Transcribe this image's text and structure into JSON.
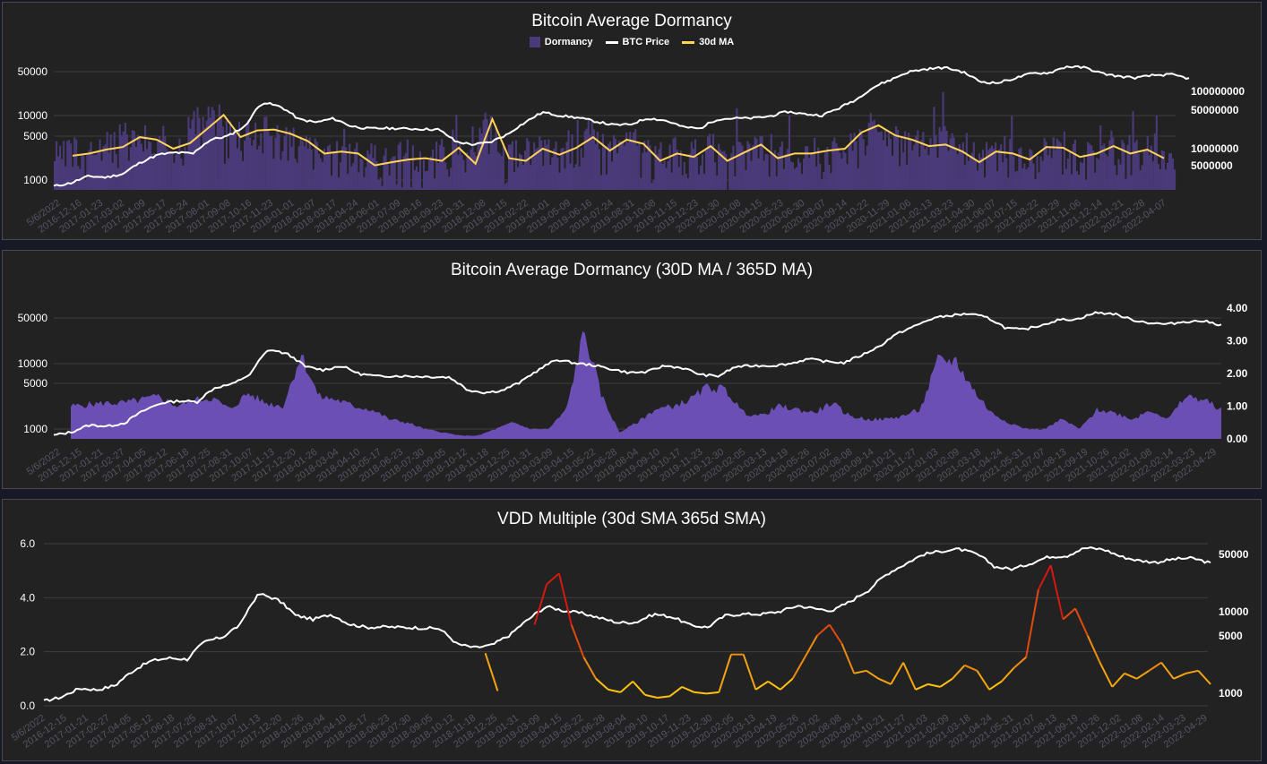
{
  "chart_data": [
    {
      "type": "bar",
      "title": "Bitcoin Average Dormancy",
      "legend": [
        {
          "name": "Dormancy",
          "color": "#4b3a7a",
          "kind": "box"
        },
        {
          "name": "BTC Price",
          "color": "#ffffff",
          "kind": "line"
        },
        {
          "name": "30d MA",
          "color": "#ffd25a",
          "kind": "line"
        }
      ],
      "left_axis_ticks": [
        "50000",
        "10000",
        "5000",
        "1000"
      ],
      "left_axis_values": [
        50000,
        10000,
        5000,
        1000
      ],
      "right_axis_ticks": [
        "100000000",
        "50000000",
        "10000000",
        "5000000"
      ],
      "right_axis_values": [
        100000000,
        50000000,
        10000000,
        5000000
      ],
      "x_ticks": [
        "5/6/2022",
        "2016-12-16",
        "2017-01-23",
        "2017-03-02",
        "2017-04-09",
        "2017-05-17",
        "2017-06-24",
        "2017-08-01",
        "2017-09-08",
        "2017-10-16",
        "2017-11-23",
        "2018-01-01",
        "2018-02-07",
        "2018-03-17",
        "2018-04-24",
        "2018-06-01",
        "2018-07-09",
        "2018-08-16",
        "2018-09-23",
        "2018-10-31",
        "2018-12-08",
        "2019-01-15",
        "2019-02-22",
        "2019-04-01",
        "2019-05-09",
        "2019-06-16",
        "2019-07-24",
        "2019-08-31",
        "2019-10-08",
        "2019-11-15",
        "2019-12-23",
        "2020-01-30",
        "2020-03-08",
        "2020-04-15",
        "2020-05-23",
        "2020-06-30",
        "2020-08-07",
        "2020-09-14",
        "2020-10-22",
        "2020-11-29",
        "2021-01-06",
        "2021-02-13",
        "2021-03-23",
        "2021-04-30",
        "2021-06-07",
        "2021-07-15",
        "2021-08-22",
        "2021-09-29",
        "2021-11-06",
        "2021-12-14",
        "2022-01-21",
        "2022-02-28",
        "2022-04-07"
      ],
      "price": [
        800,
        900,
        1150,
        1100,
        1250,
        1900,
        2500,
        2700,
        2600,
        4300,
        4900,
        7000,
        16500,
        14000,
        9000,
        8000,
        9200,
        7000,
        6400,
        6500,
        6400,
        6300,
        6200,
        4000,
        3600,
        3900,
        5200,
        8000,
        11500,
        10200,
        9500,
        8300,
        7300,
        7400,
        9300,
        8600,
        6800,
        6400,
        9000,
        9300,
        9300,
        10000,
        11800,
        10800,
        10300,
        13500,
        18500,
        29000,
        38000,
        50000,
        55000,
        58000,
        50000,
        35000,
        33000,
        39000,
        47000,
        48000,
        60000,
        58000,
        47000,
        42000,
        40000,
        44000,
        45000,
        39000
      ],
      "ma30": [
        2400,
        2600,
        3000,
        3300,
        4700,
        4300,
        3100,
        3800,
        6300,
        10500,
        4700,
        6000,
        6200,
        5300,
        4100,
        2600,
        2800,
        2600,
        1700,
        1900,
        2100,
        2200,
        2000,
        3200,
        1800,
        9000,
        2200,
        2000,
        3100,
        2500,
        3200,
        4700,
        2900,
        4300,
        3700,
        2000,
        2600,
        2300,
        3400,
        2000,
        2700,
        3600,
        2200,
        2600,
        2600,
        2900,
        3100,
        5600,
        7200,
        5000,
        4300,
        3400,
        3600,
        2800,
        1900,
        2800,
        2600,
        2100,
        3300,
        3200,
        2300,
        2600,
        3400,
        2600,
        3000,
        2200
      ]
    },
    {
      "type": "area",
      "title": "Bitcoin Average Dormancy (30D MA / 365D MA)",
      "series_color": "#6b4fb5",
      "left_axis_ticks": [
        "50000",
        "10000",
        "5000",
        "1000"
      ],
      "left_axis_values": [
        50000,
        10000,
        5000,
        1000
      ],
      "right_axis_ticks": [
        "4.00",
        "3.00",
        "2.00",
        "1.00",
        "0.00"
      ],
      "right_axis_values": [
        4,
        3,
        2,
        1,
        0
      ],
      "x_ticks": [
        "5/6/2022",
        "2016-12-15",
        "2017-01-21",
        "2017-02-27",
        "2017-04-05",
        "2017-05-12",
        "2017-06-18",
        "2017-07-25",
        "2017-08-31",
        "2017-10-07",
        "2017-11-13",
        "2017-12-20",
        "2018-01-26",
        "2018-03-04",
        "2018-04-10",
        "2018-05-17",
        "2018-06-23",
        "2018-07-30",
        "2018-09-05",
        "2018-10-12",
        "2018-11-18",
        "2018-12-25",
        "2019-01-31",
        "2019-03-09",
        "2019-04-15",
        "2019-05-22",
        "2019-06-28",
        "2019-08-04",
        "2019-09-10",
        "2019-10-17",
        "2019-11-23",
        "2019-12-30",
        "2020-02-05",
        "2020-03-13",
        "2020-04-19",
        "2020-05-26",
        "2020-07-02",
        "2020-08-08",
        "2020-09-14",
        "2020-10-21",
        "2020-11-27",
        "2021-01-03",
        "2021-02-09",
        "2021-03-18",
        "2021-04-24",
        "2021-05-31",
        "2021-07-07",
        "2021-08-13",
        "2021-09-19",
        "2021-10-26",
        "2021-12-02",
        "2022-01-08",
        "2022-02-14",
        "2022-03-23",
        "2022-04-29"
      ],
      "price": [
        800,
        900,
        1150,
        1100,
        1250,
        1900,
        2500,
        2700,
        2600,
        4300,
        4900,
        7000,
        16500,
        14000,
        9000,
        8000,
        9200,
        7000,
        6400,
        6500,
        6400,
        6300,
        6200,
        4000,
        3600,
        3900,
        5200,
        8000,
        11500,
        10200,
        9500,
        8300,
        7300,
        7400,
        9300,
        8600,
        6800,
        6400,
        9000,
        9300,
        9300,
        10000,
        11800,
        10800,
        10300,
        13500,
        18500,
        29000,
        38000,
        50000,
        55000,
        58000,
        50000,
        35000,
        33000,
        39000,
        47000,
        48000,
        60000,
        58000,
        47000,
        42000,
        40000,
        44000,
        45000,
        39000
      ],
      "ratio": [
        1.0,
        1.05,
        1.1,
        1.1,
        1.2,
        1.3,
        1.0,
        1.2,
        1.25,
        0.9,
        1.4,
        1.1,
        1.0,
        2.6,
        1.3,
        1.2,
        1.0,
        0.9,
        0.6,
        0.5,
        0.3,
        0.2,
        0.1,
        0.1,
        0.3,
        0.5,
        0.3,
        0.3,
        0.9,
        3.3,
        1.3,
        0.2,
        0.5,
        0.9,
        1.0,
        1.2,
        1.6,
        1.5,
        0.8,
        0.7,
        1.0,
        0.9,
        0.8,
        1.1,
        0.7,
        0.6,
        0.6,
        0.7,
        0.9,
        2.4,
        2.4,
        1.5,
        0.8,
        0.5,
        0.3,
        0.3,
        0.6,
        0.3,
        0.9,
        0.8,
        0.6,
        0.9,
        0.6,
        1.3,
        1.2,
        0.9
      ]
    },
    {
      "type": "line",
      "title": "VDD Multiple (30d SMA 365d SMA)",
      "left_axis_ticks": [
        "6.0",
        "4.0",
        "2.0",
        "0.0"
      ],
      "left_axis_values": [
        6,
        4,
        2,
        0
      ],
      "right_axis_ticks": [
        "50000",
        "10000",
        "5000",
        "1000"
      ],
      "right_axis_values": [
        50000,
        10000,
        5000,
        1000
      ],
      "x_ticks": [
        "5/6/2022",
        "2016-12-15",
        "2017-01-21",
        "2017-02-27",
        "2017-04-05",
        "2017-05-12",
        "2017-06-18",
        "2017-07-25",
        "2017-08-31",
        "2017-10-07",
        "2017-11-13",
        "2017-12-20",
        "2018-01-26",
        "2018-03-04",
        "2018-04-10",
        "2018-05-17",
        "2018-06-23",
        "2018-07-30",
        "2018-09-05",
        "2018-10-12",
        "2018-11-18",
        "2018-12-25",
        "2019-01-31",
        "2019-03-09",
        "2019-04-15",
        "2019-05-22",
        "2019-06-28",
        "2019-08-04",
        "2019-09-10",
        "2019-10-17",
        "2019-11-23",
        "2019-12-30",
        "2020-02-05",
        "2020-03-13",
        "2020-04-19",
        "2020-05-26",
        "2020-07-02",
        "2020-08-08",
        "2020-09-14",
        "2020-10-21",
        "2020-11-27",
        "2021-01-03",
        "2021-02-09",
        "2021-03-18",
        "2021-04-24",
        "2021-05-31",
        "2021-07-07",
        "2021-08-13",
        "2021-09-19",
        "2021-10-26",
        "2021-12-02",
        "2022-01-08",
        "2022-02-14",
        "2022-03-23",
        "2022-04-29"
      ],
      "price": [
        800,
        900,
        1150,
        1100,
        1250,
        1900,
        2500,
        2700,
        2600,
        4300,
        4900,
        7000,
        16500,
        14000,
        9000,
        8000,
        9200,
        7000,
        6400,
        6500,
        6400,
        6300,
        6200,
        4000,
        3600,
        3900,
        5200,
        8000,
        11500,
        10200,
        9500,
        8300,
        7300,
        7400,
        9300,
        8600,
        6800,
        6400,
        9000,
        9300,
        9300,
        10000,
        11800,
        10800,
        10300,
        13500,
        18500,
        29000,
        38000,
        50000,
        55000,
        58000,
        50000,
        35000,
        33000,
        39000,
        47000,
        48000,
        60000,
        58000,
        47000,
        42000,
        40000,
        44000,
        45000,
        39000
      ],
      "vdd": [
        null,
        null,
        null,
        null,
        null,
        null,
        null,
        null,
        null,
        null,
        null,
        null,
        null,
        null,
        null,
        null,
        null,
        null,
        null,
        1.95,
        0.55,
        null,
        null,
        3.0,
        4.5,
        4.9,
        3.0,
        1.8,
        1.0,
        0.6,
        0.5,
        0.9,
        0.4,
        0.3,
        0.35,
        0.7,
        0.5,
        0.45,
        0.5,
        1.9,
        1.9,
        0.6,
        0.9,
        0.6,
        1.0,
        1.8,
        2.6,
        3.0,
        2.3,
        1.2,
        1.3,
        1.0,
        0.8,
        1.6,
        0.6,
        0.8,
        0.7,
        1.0,
        1.5,
        1.3,
        0.6,
        0.9,
        1.4,
        1.8,
        4.3,
        5.2,
        3.2,
        3.6,
        2.6,
        1.6,
        0.7,
        1.2,
        1.0,
        1.3,
        1.6,
        1.0,
        1.2,
        1.3,
        0.8
      ]
    }
  ]
}
